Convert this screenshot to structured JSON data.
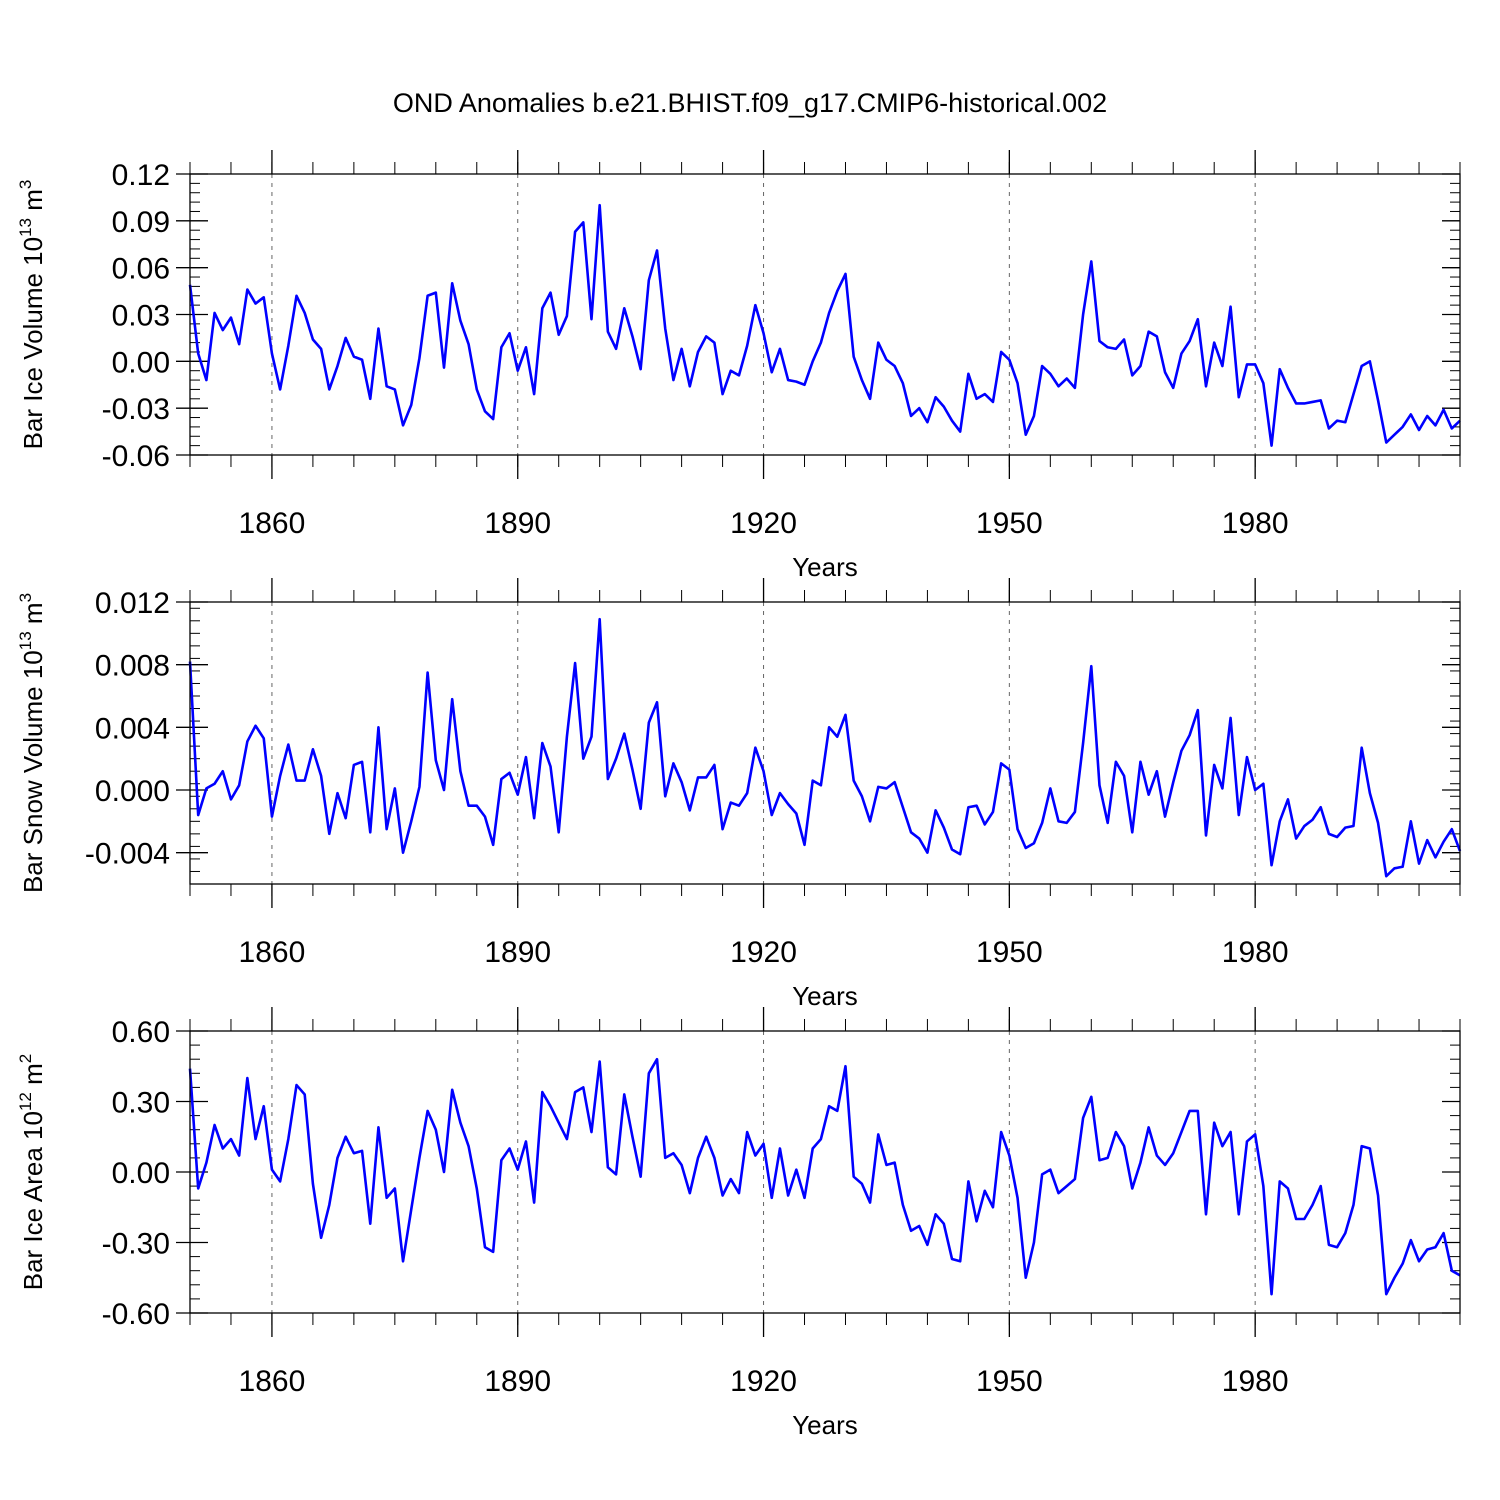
{
  "title": "OND Anomalies b.e21.BHIST.f09_g17.CMIP6-historical.002",
  "line_color": "#0000ff",
  "chart_data": [
    {
      "type": "line",
      "ylabel_main": "Bar Ice Volume 10",
      "ylabel_exp": "13",
      "ylabel_unit": " m",
      "ylabel_unit_exp": "3",
      "xlabel": "Years",
      "xlim": [
        1850,
        2005
      ],
      "ylim": [
        -0.06,
        0.12
      ],
      "yticks": [
        -0.06,
        -0.03,
        0.0,
        0.03,
        0.06,
        0.09,
        0.12
      ],
      "ytick_labels": [
        "-0.06",
        "-0.03",
        "0.00",
        "0.03",
        "0.06",
        "0.09",
        "0.12"
      ],
      "xticks": [
        1860,
        1890,
        1920,
        1950,
        1980
      ],
      "xtick_labels": [
        "1860",
        "1890",
        "1920",
        "1950",
        "1980"
      ],
      "x_start": 1850,
      "values": [
        0.049,
        0.005,
        -0.012,
        0.031,
        0.02,
        0.028,
        0.011,
        0.046,
        0.037,
        0.041,
        0.005,
        -0.018,
        0.01,
        0.042,
        0.031,
        0.014,
        0.008,
        -0.018,
        -0.003,
        0.015,
        0.003,
        0.001,
        -0.024,
        0.021,
        -0.016,
        -0.018,
        -0.041,
        -0.028,
        0.002,
        0.042,
        0.044,
        -0.004,
        0.05,
        0.026,
        0.011,
        -0.018,
        -0.032,
        -0.037,
        0.009,
        0.018,
        -0.006,
        0.009,
        -0.021,
        0.034,
        0.044,
        0.017,
        0.029,
        0.083,
        0.089,
        0.027,
        0.1,
        0.019,
        0.008,
        0.034,
        0.016,
        -0.005,
        0.052,
        0.071,
        0.021,
        -0.012,
        0.008,
        -0.016,
        0.006,
        0.016,
        0.012,
        -0.021,
        -0.006,
        -0.009,
        0.01,
        0.036,
        0.018,
        -0.007,
        0.008,
        -0.012,
        -0.013,
        -0.015,
        0.0,
        0.012,
        0.031,
        0.045,
        0.056,
        0.003,
        -0.012,
        -0.024,
        0.012,
        0.001,
        -0.003,
        -0.014,
        -0.035,
        -0.03,
        -0.039,
        -0.023,
        -0.029,
        -0.038,
        -0.045,
        -0.008,
        -0.024,
        -0.021,
        -0.026,
        0.006,
        0.001,
        -0.014,
        -0.047,
        -0.035,
        -0.003,
        -0.008,
        -0.016,
        -0.011,
        -0.017,
        0.03,
        0.064,
        0.013,
        0.009,
        0.008,
        0.014,
        -0.009,
        -0.003,
        0.019,
        0.016,
        -0.007,
        -0.017,
        0.005,
        0.013,
        0.027,
        -0.016,
        0.012,
        -0.003,
        0.035,
        -0.023,
        -0.002,
        -0.002,
        -0.014,
        -0.054,
        -0.005,
        -0.017,
        -0.027,
        -0.027,
        -0.026,
        -0.025,
        -0.043,
        -0.038,
        -0.039,
        -0.021,
        -0.003,
        0.0,
        -0.025,
        -0.052,
        -0.047,
        -0.042,
        -0.034,
        -0.044,
        -0.035,
        -0.041,
        -0.031,
        -0.043,
        -0.038
      ]
    },
    {
      "type": "line",
      "ylabel_main": "Bar Snow Volume 10",
      "ylabel_exp": "13",
      "ylabel_unit": " m",
      "ylabel_unit_exp": "3",
      "xlabel": "Years",
      "xlim": [
        1850,
        2005
      ],
      "ylim": [
        -0.006,
        0.012
      ],
      "yticks": [
        -0.004,
        0.0,
        0.004,
        0.008,
        0.012
      ],
      "ytick_labels": [
        "-0.004",
        "0.000",
        "0.004",
        "0.008",
        "0.012"
      ],
      "xticks": [
        1860,
        1890,
        1920,
        1950,
        1980
      ],
      "xtick_labels": [
        "1860",
        "1890",
        "1920",
        "1950",
        "1980"
      ],
      "x_start": 1850,
      "values": [
        0.0082,
        -0.0016,
        0.0001,
        0.0004,
        0.0012,
        -0.0006,
        0.0003,
        0.0031,
        0.0041,
        0.0033,
        -0.0017,
        0.0009,
        0.0029,
        0.0006,
        0.0006,
        0.0026,
        0.0009,
        -0.0028,
        -0.0002,
        -0.0018,
        0.0016,
        0.0018,
        -0.0027,
        0.004,
        -0.0025,
        0.0001,
        -0.004,
        -0.002,
        0.0002,
        0.0075,
        0.0019,
        0.0,
        0.0058,
        0.0012,
        -0.001,
        -0.001,
        -0.0017,
        -0.0035,
        0.0007,
        0.0011,
        -0.0003,
        0.0021,
        -0.0018,
        0.003,
        0.0015,
        -0.0027,
        0.0034,
        0.0081,
        0.002,
        0.0034,
        0.0109,
        0.0007,
        0.002,
        0.0036,
        0.0013,
        -0.0012,
        0.0043,
        0.0056,
        -0.0004,
        0.0017,
        0.0005,
        -0.0013,
        0.0008,
        0.0008,
        0.0016,
        -0.0025,
        -0.0008,
        -0.001,
        -0.0002,
        0.0027,
        0.0012,
        -0.0016,
        -0.0002,
        -0.0009,
        -0.0015,
        -0.0035,
        0.0006,
        0.0003,
        0.004,
        0.0034,
        0.0048,
        0.0006,
        -0.0004,
        -0.002,
        0.0002,
        0.0001,
        0.0005,
        -0.0011,
        -0.0027,
        -0.0031,
        -0.004,
        -0.0013,
        -0.0024,
        -0.0038,
        -0.0041,
        -0.0011,
        -0.001,
        -0.0022,
        -0.0014,
        0.0017,
        0.0013,
        -0.0025,
        -0.0037,
        -0.0034,
        -0.0021,
        0.0001,
        -0.002,
        -0.0021,
        -0.0014,
        0.003,
        0.0079,
        0.0003,
        -0.0021,
        0.0018,
        0.0009,
        -0.0027,
        0.0018,
        -0.0003,
        0.0012,
        -0.0017,
        0.0005,
        0.0025,
        0.0035,
        0.0051,
        -0.0029,
        0.0016,
        0.0001,
        0.0046,
        -0.0016,
        0.0021,
        0.0,
        0.0004,
        -0.0048,
        -0.002,
        -0.0006,
        -0.0031,
        -0.0023,
        -0.0019,
        -0.0011,
        -0.0028,
        -0.003,
        -0.0024,
        -0.0023,
        0.0027,
        -0.0002,
        -0.0021,
        -0.0055,
        -0.005,
        -0.0049,
        -0.002,
        -0.0047,
        -0.0032,
        -0.0043,
        -0.0033,
        -0.0025,
        -0.0039
      ]
    },
    {
      "type": "line",
      "ylabel_main": "Bar Ice Area 10",
      "ylabel_exp": "12",
      "ylabel_unit": " m",
      "ylabel_unit_exp": "2",
      "xlabel": "Years",
      "xlim": [
        1850,
        2005
      ],
      "ylim": [
        -0.6,
        0.6
      ],
      "yticks": [
        -0.6,
        -0.3,
        0.0,
        0.3,
        0.6
      ],
      "ytick_labels": [
        "-0.60",
        "-0.30",
        "0.00",
        "0.30",
        "0.60"
      ],
      "xticks": [
        1860,
        1890,
        1920,
        1950,
        1980
      ],
      "xtick_labels": [
        "1860",
        "1890",
        "1920",
        "1950",
        "1980"
      ],
      "x_start": 1850,
      "values": [
        0.44,
        -0.07,
        0.04,
        0.2,
        0.1,
        0.14,
        0.07,
        0.4,
        0.14,
        0.28,
        0.01,
        -0.04,
        0.14,
        0.37,
        0.33,
        -0.05,
        -0.28,
        -0.14,
        0.06,
        0.15,
        0.08,
        0.09,
        -0.22,
        0.19,
        -0.11,
        -0.07,
        -0.38,
        -0.16,
        0.06,
        0.26,
        0.18,
        0.0,
        0.35,
        0.21,
        0.11,
        -0.07,
        -0.32,
        -0.34,
        0.05,
        0.1,
        0.01,
        0.13,
        -0.13,
        0.34,
        0.28,
        0.21,
        0.14,
        0.34,
        0.36,
        0.17,
        0.47,
        0.02,
        -0.01,
        0.33,
        0.15,
        -0.02,
        0.42,
        0.48,
        0.06,
        0.08,
        0.03,
        -0.09,
        0.06,
        0.15,
        0.06,
        -0.1,
        -0.03,
        -0.09,
        0.17,
        0.07,
        0.12,
        -0.11,
        0.1,
        -0.1,
        0.01,
        -0.11,
        0.1,
        0.14,
        0.28,
        0.26,
        0.45,
        -0.02,
        -0.05,
        -0.13,
        0.16,
        0.03,
        0.04,
        -0.14,
        -0.25,
        -0.23,
        -0.31,
        -0.18,
        -0.22,
        -0.37,
        -0.38,
        -0.04,
        -0.21,
        -0.08,
        -0.15,
        0.17,
        0.07,
        -0.11,
        -0.45,
        -0.3,
        -0.01,
        0.01,
        -0.09,
        -0.06,
        -0.03,
        0.23,
        0.32,
        0.05,
        0.06,
        0.17,
        0.11,
        -0.07,
        0.04,
        0.19,
        0.07,
        0.03,
        0.08,
        0.17,
        0.26,
        0.26,
        -0.18,
        0.21,
        0.11,
        0.17,
        -0.18,
        0.13,
        0.16,
        -0.06,
        -0.52,
        -0.04,
        -0.07,
        -0.2,
        -0.2,
        -0.14,
        -0.06,
        -0.31,
        -0.32,
        -0.26,
        -0.14,
        0.11,
        0.1,
        -0.1,
        -0.52,
        -0.45,
        -0.39,
        -0.29,
        -0.38,
        -0.33,
        -0.32,
        -0.26,
        -0.42,
        -0.44
      ]
    }
  ]
}
